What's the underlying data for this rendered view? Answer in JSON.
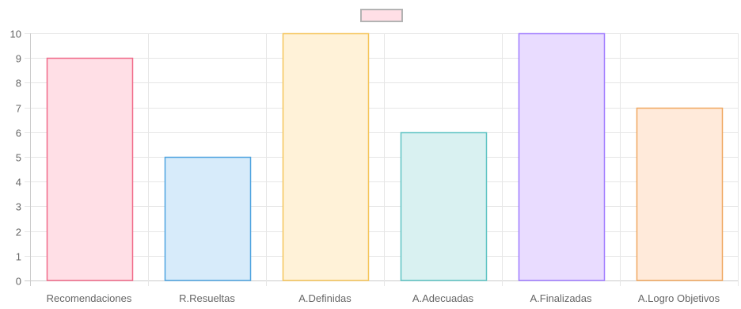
{
  "chart_data": {
    "type": "bar",
    "categories": [
      "Recomendaciones",
      "R.Resueltas",
      "A.Definidas",
      "A.Adecuadas",
      "A.Finalizadas",
      "A.Logro Objetivos"
    ],
    "values": [
      9,
      5,
      10,
      6,
      10,
      7
    ],
    "ylim": [
      0,
      10
    ],
    "yticks": [
      "0",
      "1",
      "2",
      "3",
      "4",
      "5",
      "6",
      "7",
      "8",
      "9",
      "10"
    ],
    "grid": true,
    "legend": {
      "placement": "top-center",
      "label": "",
      "swatch_fill": "#ffdfe6",
      "swatch_stroke": "#b3b3b3"
    },
    "colors": {
      "fills": [
        "#ffdfe6",
        "#d7ebfa",
        "#fff2d8",
        "#d9f1f1",
        "#e9dcff",
        "#ffeada"
      ],
      "strokes": [
        "#f06a89",
        "#4ea3df",
        "#f5c55a",
        "#5ec3c3",
        "#a07cff",
        "#f0a760"
      ],
      "grid": "#e6e6e6",
      "axis": "#cccccc",
      "tick_text": "#666666"
    },
    "title": "",
    "xlabel": "",
    "ylabel": ""
  }
}
